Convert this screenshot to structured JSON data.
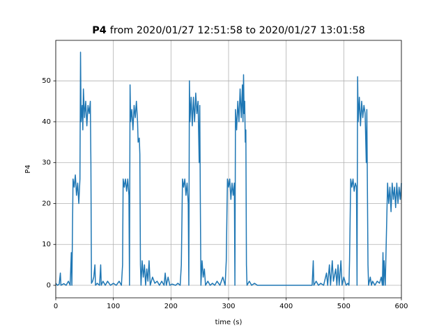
{
  "chart_data": {
    "type": "line",
    "title_bold": "P4",
    "title": "from 2020/01/27 12:51:58 to 2020/01/27 13:01:58",
    "x_label": "time (s)",
    "y_label": "P4",
    "x": [
      0,
      3,
      6,
      8,
      9,
      14,
      18,
      22,
      25,
      27,
      28,
      29,
      30,
      32,
      34,
      36,
      38,
      40,
      42,
      43,
      44,
      46,
      47,
      48,
      50,
      52,
      54,
      56,
      58,
      60,
      61,
      62,
      64,
      66,
      68,
      69,
      72,
      76,
      78,
      79,
      82,
      86,
      90,
      95,
      100,
      105,
      110,
      114,
      116,
      117,
      119,
      121,
      123,
      125,
      127,
      128,
      129,
      130,
      132,
      134,
      136,
      138,
      140,
      142,
      143,
      145,
      146,
      147,
      148,
      150,
      152,
      154,
      156,
      158,
      160,
      162,
      164,
      168,
      172,
      176,
      180,
      184,
      188,
      190,
      192,
      195,
      198,
      202,
      208,
      212,
      216,
      218,
      220,
      222,
      224,
      226,
      228,
      230,
      231,
      232,
      233,
      235,
      237,
      239,
      241,
      243,
      245,
      247,
      249,
      250,
      251,
      252,
      254,
      256,
      258,
      260,
      264,
      268,
      272,
      276,
      280,
      285,
      290,
      294,
      296,
      298,
      300,
      302,
      304,
      306,
      308,
      310,
      311,
      312,
      314,
      316,
      318,
      320,
      322,
      324,
      325,
      326,
      327,
      328,
      329,
      330,
      331,
      332,
      336,
      340,
      345,
      350,
      445,
      447,
      448,
      452,
      456,
      460,
      465,
      470,
      472,
      475,
      477,
      480,
      482,
      486,
      488,
      490,
      492,
      495,
      497,
      500,
      504,
      507,
      509,
      510,
      512,
      514,
      516,
      518,
      520,
      522,
      523,
      524,
      525,
      527,
      529,
      531,
      533,
      535,
      537,
      539,
      540,
      542,
      543,
      546,
      548,
      550,
      554,
      558,
      562,
      565,
      567,
      568,
      569,
      570,
      572,
      576,
      578,
      580,
      582,
      584,
      586,
      588,
      590,
      592,
      594,
      596,
      598,
      600
    ],
    "series": [
      {
        "name": "P4",
        "color": "#1f77b4",
        "values": [
          0.5,
          0,
          0.3,
          3,
          0,
          0.4,
          0,
          1,
          0,
          8,
          0,
          13,
          26,
          24,
          27,
          22,
          25,
          20,
          26,
          57,
          40,
          44,
          38,
          48,
          41,
          45,
          39,
          44,
          42,
          45,
          30,
          0.5,
          1,
          2,
          5,
          0,
          0.5,
          0,
          5,
          0,
          1,
          0,
          1,
          0,
          0.5,
          0,
          1,
          0,
          5,
          26,
          24,
          26,
          23,
          26,
          22,
          0,
          49,
          40,
          43,
          38,
          44,
          41,
          45,
          40,
          35,
          36,
          32,
          5,
          0,
          6,
          2,
          5,
          0,
          4,
          1,
          6,
          0,
          2,
          0.5,
          1,
          0,
          1,
          0,
          3,
          0,
          2,
          0,
          0.3,
          0,
          0.5,
          0,
          5,
          26,
          24,
          26,
          22,
          25,
          20,
          0,
          50,
          40,
          46,
          39,
          46,
          40,
          47,
          42,
          45,
          30,
          44,
          20,
          0,
          6,
          2,
          4,
          0,
          1,
          0,
          0.5,
          0,
          1,
          0,
          2,
          0,
          6,
          26,
          24,
          26,
          21,
          25,
          22,
          25,
          0,
          43,
          38,
          45,
          40,
          48,
          41,
          49,
          40,
          51.5,
          42,
          45,
          35,
          38,
          5,
          0,
          1,
          0,
          0.5,
          0,
          0,
          6,
          0,
          1,
          0,
          0.5,
          0,
          3,
          0,
          5,
          0,
          6,
          1,
          4,
          0,
          5,
          0,
          6,
          0,
          2,
          0,
          0.5,
          0,
          6,
          26,
          24,
          26,
          23,
          25,
          24,
          0,
          51,
          40,
          46,
          39,
          45,
          41,
          44,
          42,
          30,
          43,
          5,
          0,
          2,
          0,
          1,
          0,
          1,
          0.5,
          2,
          0,
          8,
          0,
          6,
          0,
          25,
          20,
          24,
          18,
          25,
          21,
          24,
          19,
          25,
          20,
          24,
          21,
          25
        ]
      }
    ],
    "xlim": [
      0,
      600
    ],
    "ylim": [
      -3.06,
      59.9
    ],
    "xticks": [
      0,
      100,
      200,
      300,
      400,
      500,
      600
    ],
    "yticks": [
      0,
      10,
      20,
      30,
      40,
      50
    ],
    "grid": true
  }
}
